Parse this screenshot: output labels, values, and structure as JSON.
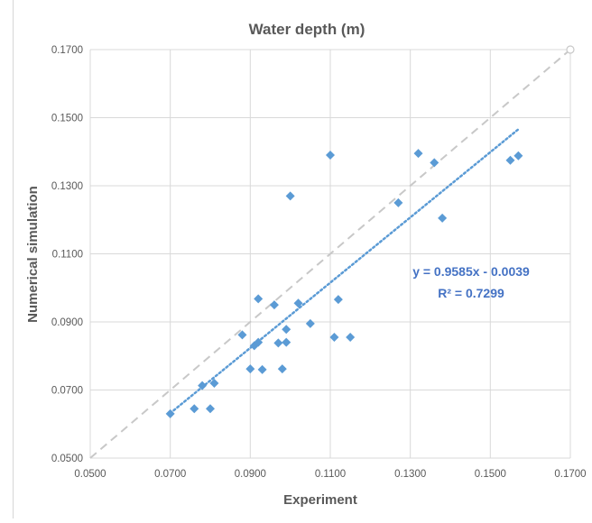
{
  "chart_data": {
    "type": "scatter",
    "title": "Water depth (m)",
    "xlabel": "Experiment",
    "ylabel": "Numerical simulation",
    "xlim": [
      0.05,
      0.17
    ],
    "ylim": [
      0.05,
      0.17
    ],
    "x_ticks": [
      "0.0500",
      "0.0700",
      "0.0900",
      "0.1100",
      "0.1300",
      "0.1500",
      "0.1700"
    ],
    "y_ticks": [
      "0.0500",
      "0.0700",
      "0.0900",
      "0.1100",
      "0.1300",
      "0.1500",
      "0.1700"
    ],
    "grid": true,
    "series": [
      {
        "marker": "diamond",
        "color": "#5b9bd5",
        "points": [
          {
            "x": 0.07,
            "y": 0.063
          },
          {
            "x": 0.076,
            "y": 0.0645
          },
          {
            "x": 0.08,
            "y": 0.0645
          },
          {
            "x": 0.078,
            "y": 0.0713
          },
          {
            "x": 0.081,
            "y": 0.072
          },
          {
            "x": 0.088,
            "y": 0.0862
          },
          {
            "x": 0.09,
            "y": 0.0762
          },
          {
            "x": 0.091,
            "y": 0.083
          },
          {
            "x": 0.092,
            "y": 0.084
          },
          {
            "x": 0.093,
            "y": 0.076
          },
          {
            "x": 0.092,
            "y": 0.0968
          },
          {
            "x": 0.096,
            "y": 0.095
          },
          {
            "x": 0.097,
            "y": 0.0838
          },
          {
            "x": 0.098,
            "y": 0.0762
          },
          {
            "x": 0.099,
            "y": 0.084
          },
          {
            "x": 0.099,
            "y": 0.0878
          },
          {
            "x": 0.1,
            "y": 0.127
          },
          {
            "x": 0.102,
            "y": 0.0955
          },
          {
            "x": 0.105,
            "y": 0.0895
          },
          {
            "x": 0.11,
            "y": 0.139
          },
          {
            "x": 0.111,
            "y": 0.0855
          },
          {
            "x": 0.112,
            "y": 0.0966
          },
          {
            "x": 0.115,
            "y": 0.0855
          },
          {
            "x": 0.127,
            "y": 0.125
          },
          {
            "x": 0.132,
            "y": 0.1395
          },
          {
            "x": 0.136,
            "y": 0.1368
          },
          {
            "x": 0.138,
            "y": 0.1205
          },
          {
            "x": 0.155,
            "y": 0.1375
          },
          {
            "x": 0.157,
            "y": 0.1388
          }
        ]
      }
    ],
    "reference_line": {
      "from": [
        0.05,
        0.05
      ],
      "to": [
        0.17,
        0.17
      ],
      "color": "#c8c8c8",
      "style": "dashed"
    },
    "trendline": {
      "slope": 0.9585,
      "intercept": -0.0039,
      "x_range": [
        0.07,
        0.157
      ],
      "color": "#5b9bd5",
      "style": "dotted"
    },
    "annotations": [
      "y = 0.9585x - 0.0039",
      "R² = 0.7299"
    ]
  }
}
